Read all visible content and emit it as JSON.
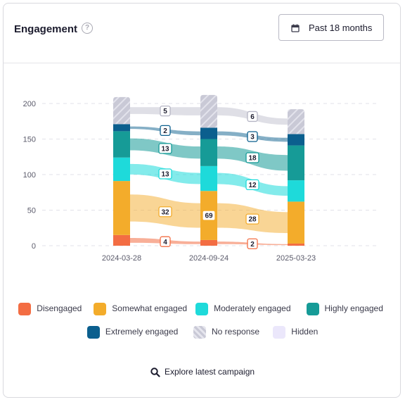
{
  "header": {
    "title": "Engagement",
    "help_symbol": "?",
    "range_label": "Past 18 months",
    "range_icon": "calendar-icon",
    "help_icon": "question-circle-icon"
  },
  "chart_data": {
    "type": "bar",
    "stacked": true,
    "categories": [
      "2024-03-28",
      "2024-09-24",
      "2025-03-23"
    ],
    "y_ticks": [
      0,
      50,
      100,
      150,
      200
    ],
    "ylim": [
      0,
      200
    ],
    "grid": true,
    "series": [
      {
        "name": "Disengaged",
        "color": "#f36d43",
        "values": [
          15,
          8,
          3
        ]
      },
      {
        "name": "Somewhat engaged",
        "color": "#f3ac2b",
        "values": [
          76,
          69,
          59
        ]
      },
      {
        "name": "Moderately engaged",
        "color": "#1edada",
        "values": [
          33,
          35,
          30
        ]
      },
      {
        "name": "Highly engaged",
        "color": "#169b97",
        "values": [
          37,
          38,
          49
        ]
      },
      {
        "name": "Extremely engaged",
        "color": "#0b5f8e",
        "values": [
          10,
          16,
          16
        ]
      },
      {
        "name": "No response",
        "color": "#c9c9d6",
        "hatched": true,
        "values": [
          38,
          46,
          35
        ]
      }
    ],
    "flow_labels": [
      {
        "series": "Disengaged",
        "values": [
          "4",
          "2"
        ]
      },
      {
        "series": "Somewhat engaged",
        "values": [
          "32",
          "28"
        ]
      },
      {
        "series": "Moderately engaged",
        "values": [
          "13",
          "12"
        ]
      },
      {
        "series": "Highly engaged",
        "values": [
          "13",
          "18"
        ]
      },
      {
        "series": "Extremely engaged",
        "values": [
          "2",
          "3"
        ]
      },
      {
        "series": "No response",
        "values": [
          "5",
          "6"
        ]
      }
    ],
    "bar_labels": [
      {
        "category": "2024-09-24",
        "series": "Somewhat engaged",
        "value": "69"
      }
    ]
  },
  "legend": {
    "items": [
      {
        "label": "Disengaged",
        "color": "#f36d43"
      },
      {
        "label": "Somewhat engaged",
        "color": "#f3ac2b"
      },
      {
        "label": "Moderately engaged",
        "color": "#1edada"
      },
      {
        "label": "Highly engaged",
        "color": "#169b97"
      },
      {
        "label": "Extremely engaged",
        "color": "#0b5f8e"
      },
      {
        "label": "No response",
        "color": "#c9c9d6",
        "hatched": true
      },
      {
        "label": "Hidden",
        "color": "#ebe7fb"
      }
    ]
  },
  "footer": {
    "explore_label": "Explore latest campaign",
    "explore_icon": "search-icon"
  }
}
